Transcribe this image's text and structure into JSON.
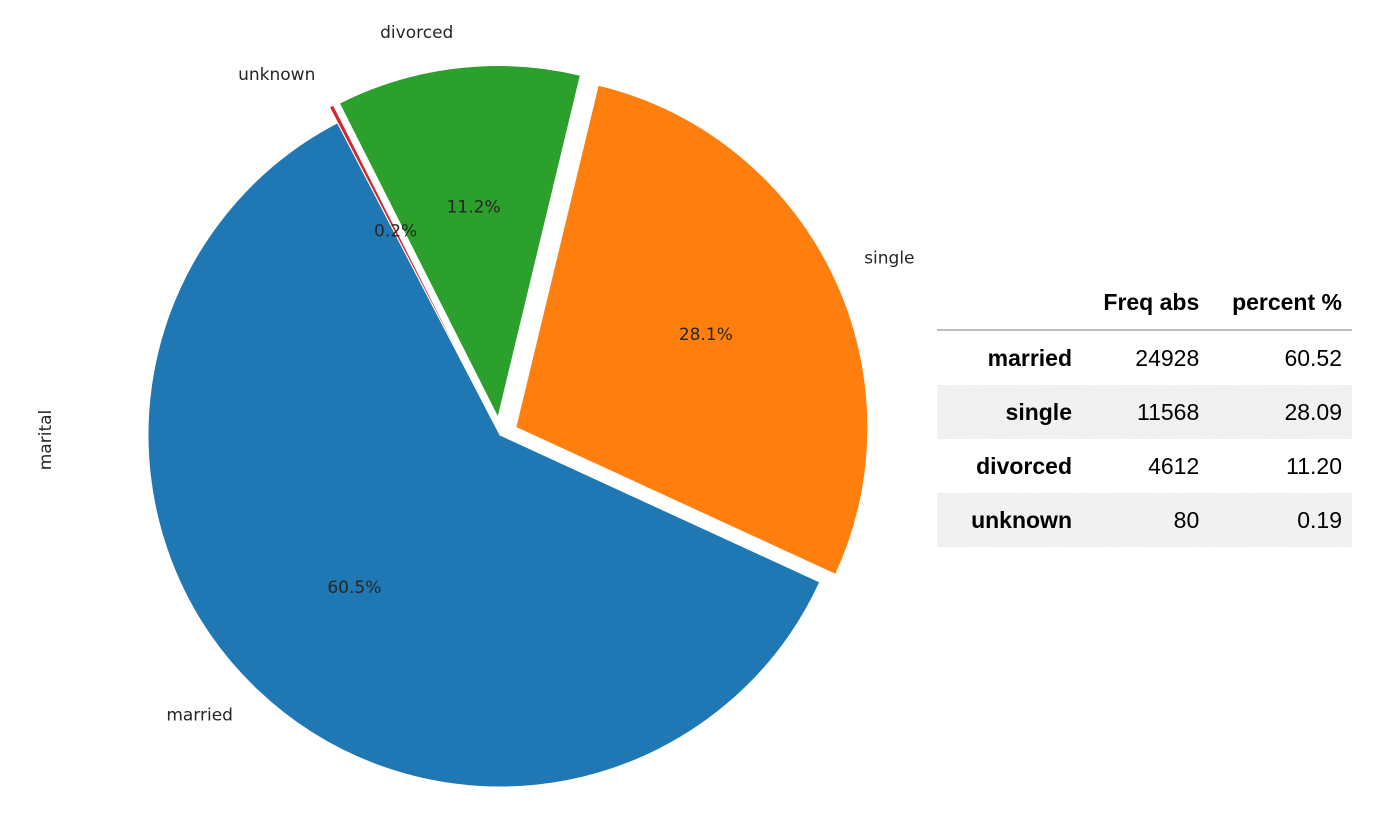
{
  "chart_data": [
    {
      "type": "pie",
      "ylabel": "marital",
      "slices": [
        {
          "label": "married",
          "value": 60.5,
          "pct_label": "60.5%",
          "color": "#1f77b4"
        },
        {
          "label": "single",
          "value": 28.1,
          "pct_label": "28.1%",
          "color": "#ff7f0e"
        },
        {
          "label": "divorced",
          "value": 11.2,
          "pct_label": "11.2%",
          "color": "#2ca02c"
        },
        {
          "label": "unknown",
          "value": 0.2,
          "pct_label": "0.2%",
          "color": "#d62728"
        }
      ]
    },
    {
      "type": "table",
      "columns": [
        "",
        "Freq abs",
        "percent %"
      ],
      "rows": [
        {
          "label": "married",
          "freq": "24928",
          "percent": "60.52"
        },
        {
          "label": "single",
          "freq": "11568",
          "percent": "28.09"
        },
        {
          "label": "divorced",
          "freq": "4612",
          "percent": "11.20"
        },
        {
          "label": "unknown",
          "freq": "80",
          "percent": "0.19"
        }
      ]
    }
  ]
}
